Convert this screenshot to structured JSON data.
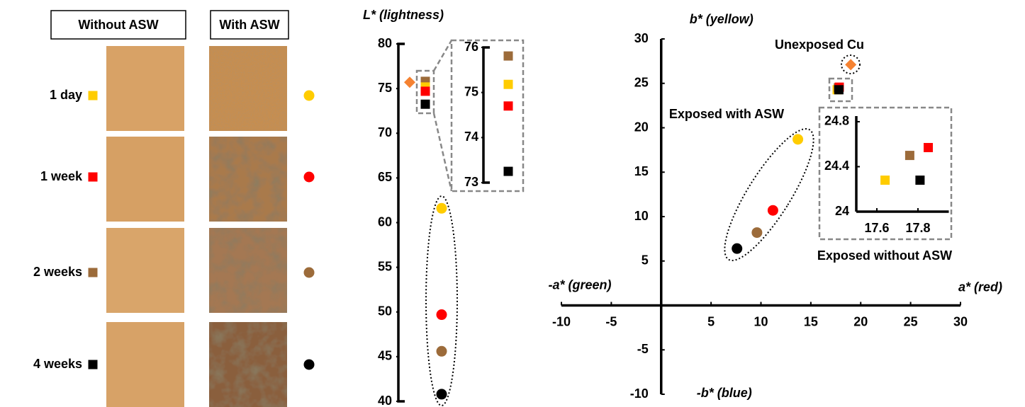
{
  "panel": {
    "headers": [
      "Without ASW",
      "With ASW"
    ],
    "rows": [
      {
        "label": "1 day",
        "color": "#ffcc00"
      },
      {
        "label": "1 week",
        "color": "#ff0000"
      },
      {
        "label": "2 weeks",
        "color": "#9c6b3a"
      },
      {
        "label": "4 weeks",
        "color": "#000000"
      }
    ]
  },
  "chart_data": [
    {
      "type": "scatter",
      "title": "L* (lightness)",
      "ylim": [
        40,
        80
      ],
      "yticks": [
        40,
        45,
        50,
        55,
        60,
        65,
        70,
        75,
        80
      ],
      "series": [
        {
          "marker": "diamond",
          "colors": [
            "#f58232"
          ],
          "values": [
            75.7
          ]
        },
        {
          "marker": "square",
          "colors": [
            "#9c6b3a",
            "#ffcc00",
            "#ff0000",
            "#000000"
          ],
          "values": [
            75.81,
            75.18,
            74.7,
            73.25
          ]
        },
        {
          "marker": "circle",
          "colors": [
            "#ffcc00",
            "#ff0000",
            "#9c6b3a",
            "#000000"
          ],
          "values": [
            61.6,
            49.7,
            45.6,
            40.8
          ]
        }
      ]
    },
    {
      "type": "scatter",
      "ylim": [
        73,
        76
      ],
      "yticks": [
        73,
        74,
        75,
        76
      ],
      "series": [
        {
          "marker": "square",
          "colors": [
            "#9c6b3a",
            "#ffcc00",
            "#ff0000",
            "#000000"
          ],
          "values": [
            75.81,
            75.18,
            74.7,
            73.25
          ]
        }
      ]
    },
    {
      "type": "scatter",
      "x_label": "a* (red)",
      "x_neg_label": "-a* (green)",
      "y_label": "b* (yellow)",
      "y_neg_label": "-b* (blue)",
      "axis_label_colors": {
        "x_label": "#ff0000",
        "x_neg_label": "#00b050",
        "y_label": "#ffc000",
        "y_neg_label": "#0000ff"
      },
      "xlim": [
        -10,
        30
      ],
      "xticks": [
        -10,
        -5,
        5,
        10,
        15,
        20,
        25,
        30
      ],
      "ylim": [
        -10,
        30
      ],
      "yticks": [
        -10,
        -5,
        5,
        10,
        15,
        20,
        25,
        30
      ],
      "series": [
        {
          "name": "Unexposed Cu",
          "marker": "diamond",
          "colors": [
            "#f58232"
          ],
          "x": [
            19.0
          ],
          "values": [
            27.1
          ]
        },
        {
          "name": "Exposed without ASW",
          "marker": "square",
          "colors": [
            "#ffcc00",
            "#9c6b3a",
            "#ff0000",
            "#000000"
          ],
          "x": [
            17.64,
            17.76,
            17.85,
            17.81
          ],
          "values": [
            24.28,
            24.5,
            24.57,
            24.28
          ]
        },
        {
          "name": "Exposed with ASW",
          "marker": "circle",
          "colors": [
            "#ffcc00",
            "#ff0000",
            "#9c6b3a",
            "#000000"
          ],
          "x": [
            13.7,
            11.2,
            9.6,
            7.6
          ],
          "values": [
            18.7,
            10.7,
            8.2,
            6.4
          ]
        }
      ]
    },
    {
      "type": "scatter",
      "xlim": [
        17.5,
        17.95
      ],
      "xticks": [
        17.6,
        17.8
      ],
      "ylim": [
        24,
        24.85
      ],
      "yticks": [
        24,
        24.4,
        24.8
      ],
      "series": [
        {
          "marker": "square",
          "colors": [
            "#ffcc00",
            "#9c6b3a",
            "#ff0000",
            "#000000"
          ],
          "x": [
            17.64,
            17.76,
            17.85,
            17.81
          ],
          "values": [
            24.28,
            24.5,
            24.57,
            24.28
          ]
        }
      ]
    }
  ]
}
